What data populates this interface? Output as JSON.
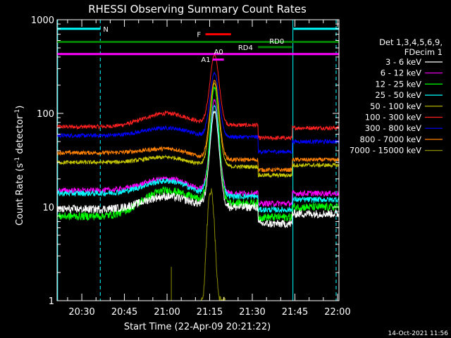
{
  "chart_data": {
    "type": "line",
    "title": "RHESSI Observing Summary Count Rates",
    "xlabel": "Start Time (22-Apr-09 20:21:22)",
    "ylabel_main": "Count Rate (s",
    "ylabel_sup1": "-1",
    "ylabel_mid": " detector",
    "ylabel_sup2": "-1",
    "ylabel_end": ")",
    "y_scale": "log",
    "xlim_min": [
      21.3,
      120.5
    ],
    "ylim": [
      1,
      1000
    ],
    "x_ticks": [
      {
        "label": "20:30",
        "t": 30
      },
      {
        "label": "20:45",
        "t": 45
      },
      {
        "label": "21:00",
        "t": 60
      },
      {
        "label": "21:15",
        "t": 75
      },
      {
        "label": "21:30",
        "t": 90
      },
      {
        "label": "21:45",
        "t": 105
      },
      {
        "label": "22:00",
        "t": 120
      }
    ],
    "y_ticks": [
      {
        "label": "1",
        "v": 1
      },
      {
        "label": "10",
        "v": 10
      },
      {
        "label": "100",
        "v": 100
      },
      {
        "label": "1000",
        "v": 1000
      }
    ],
    "legend": {
      "position": "right",
      "header": [
        "Det 1,3,4,5,6,9,",
        "FDecim 1"
      ],
      "entries": [
        {
          "label": "3 - 6 keV",
          "color": "#ffffff"
        },
        {
          "label": "6 - 12 keV",
          "color": "#ff00ff"
        },
        {
          "label": "12 - 25 keV",
          "color": "#00ff00"
        },
        {
          "label": "25 - 50 keV",
          "color": "#00ffff"
        },
        {
          "label": "50 - 100 keV",
          "color": "#c8c800"
        },
        {
          "label": "100 - 300 keV",
          "color": "#ff2020"
        },
        {
          "label": "300 - 800 keV",
          "color": "#0000ff"
        },
        {
          "label": "800 - 7000 keV",
          "color": "#ff8000"
        },
        {
          "label": "7000 - 15000 keV",
          "color": "#8b8b00"
        }
      ]
    },
    "series": [
      {
        "color": "#ff2020",
        "base_start": 72,
        "hump": 100,
        "mid": 75,
        "after": 70,
        "peak": 420,
        "noise": 0.05
      },
      {
        "color": "#0000ff",
        "base_start": 58,
        "hump": 70,
        "mid": 56,
        "after": 50,
        "peak": 270,
        "noise": 0.05
      },
      {
        "color": "#ff8000",
        "base_start": 38,
        "hump": 42,
        "mid": 32,
        "after": 32,
        "peak": 225,
        "noise": 0.05
      },
      {
        "color": "#c8c800",
        "base_start": 30,
        "hump": 34,
        "mid": 27,
        "after": 28,
        "peak": 210,
        "noise": 0.05
      },
      {
        "color": "#ff00ff",
        "base_start": 15,
        "hump": 20,
        "mid": 14,
        "after": 14,
        "peak": 140,
        "noise": 0.07
      },
      {
        "color": "#00ffff",
        "base_start": 14,
        "hump": 19,
        "mid": 13,
        "after": 12,
        "peak": 120,
        "noise": 0.07
      },
      {
        "color": "#00ff00",
        "base_start": 8,
        "hump": 15,
        "mid": 11,
        "after": 10,
        "peak": 190,
        "noise": 0.1
      },
      {
        "color": "#ffffff",
        "base_start": 9.5,
        "hump": 13,
        "mid": 10,
        "after": 8.5,
        "peak": 105,
        "noise": 0.1
      }
    ],
    "high_energy_series": {
      "color": "#8b8b00",
      "peak": 15,
      "peak_t": 75.4
    },
    "flag_bars": [
      {
        "label": "N",
        "color": "#00ffff",
        "t0": 21.3,
        "t1": 36.5,
        "v": 800,
        "label_t": 37.5,
        "label_v": 800
      },
      {
        "label": "",
        "color": "#00ffff",
        "t0": 104.5,
        "t1": 120.5,
        "v": 800,
        "label_t": 0,
        "label_v": 0
      },
      {
        "label": "F",
        "color": "#ff0000",
        "t0": 73.5,
        "t1": 82.5,
        "v": 700,
        "label_t": 70.5,
        "label_v": 700
      },
      {
        "label": "RD0",
        "color": "#008000",
        "t0": 21.3,
        "t1": 120.5,
        "v": 580,
        "label_t": 96,
        "label_v": 595
      },
      {
        "label": "RD4",
        "color": "#008000",
        "t0": 92,
        "t1": 104,
        "v": 510,
        "label_t": 85,
        "label_v": 510
      },
      {
        "label": "A0",
        "color": "#ff00ff",
        "t0": 21.3,
        "t1": 120.5,
        "v": 430,
        "label_t": 76.5,
        "label_v": 460
      },
      {
        "label": "A1",
        "color": "#ff00ff",
        "t0": 76,
        "t1": 80,
        "v": 375,
        "label_t": 72,
        "label_v": 380
      }
    ],
    "vlines": [
      {
        "t": 21.5,
        "color": "#00ffff",
        "dashed": false
      },
      {
        "t": 36.5,
        "color": "#00ffff",
        "dashed": true
      },
      {
        "t": 104.3,
        "color": "#00ffff",
        "dashed": false
      },
      {
        "t": 119.5,
        "color": "#00ffff",
        "dashed": true
      }
    ]
  },
  "footer_timestamp": "14-Oct-2021 11:56"
}
